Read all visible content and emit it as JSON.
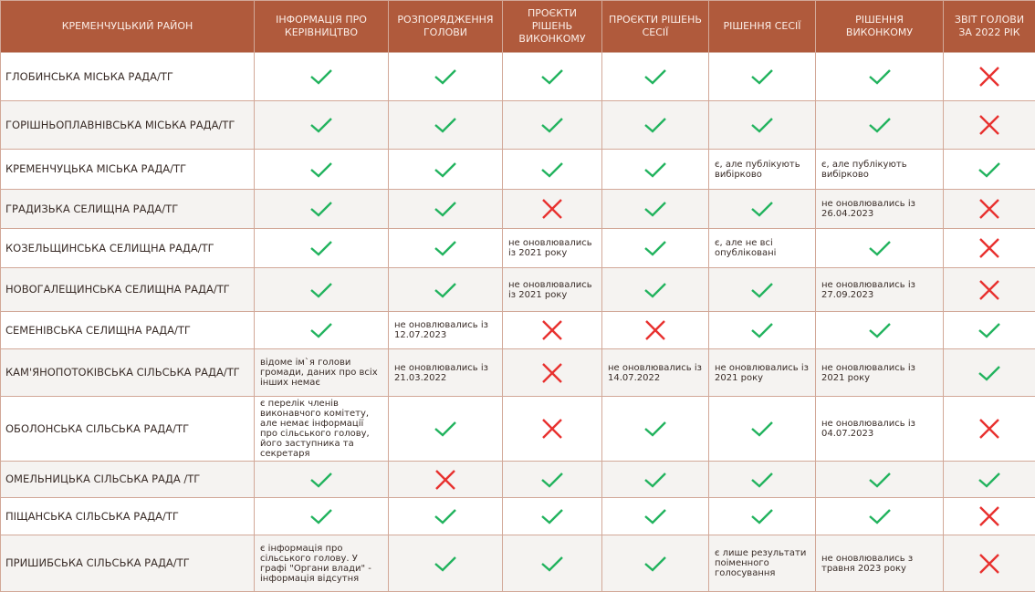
{
  "header": [
    "Кременчуцький район",
    "Інформація про керівництво",
    "Розпорядження голови",
    "Проєкти рішень виконкому",
    "Проєкти рішень сесії",
    "Рішення сесії",
    "Рішення виконкому",
    "Звіт голови за 2022 рік"
  ],
  "colors": {
    "header_bg": "#b05a3c",
    "check": "#22b35e",
    "cross": "#e8312f"
  },
  "rows": [
    {
      "name": "Глобинська міська рада/ТГ",
      "cells": [
        "y",
        "y",
        "y",
        "y",
        "y",
        "y",
        "n"
      ]
    },
    {
      "name": "Горішньоплавнівська міська рада/ТГ",
      "cells": [
        "y",
        "y",
        "y",
        "y",
        "y",
        "y",
        "n"
      ]
    },
    {
      "name": "Кременчуцька міська рада/ТГ",
      "cells": [
        "y",
        "y",
        "y",
        "y",
        "є, але публікують вибірково",
        "є, але публікують вибірково",
        "y"
      ]
    },
    {
      "name": "Градизька селищна рада/ТГ",
      "cells": [
        "y",
        "y",
        "n",
        "y",
        "y",
        "не оновлювались із 26.04.2023",
        "n"
      ]
    },
    {
      "name": "Козельщинська селищна рада/ТГ",
      "cells": [
        "y",
        "y",
        "не оновлювались із 2021 року",
        "y",
        "є, але не всі опубліковані",
        "y",
        "n"
      ]
    },
    {
      "name": "Новогалещинська селищна рада/ТГ",
      "cells": [
        "y",
        "y",
        "не оновлювались із 2021 року",
        "y",
        "y",
        "не оновлювались із 27.09.2023",
        "n"
      ]
    },
    {
      "name": "Семенівська селищна рада/ТГ",
      "cells": [
        "y",
        "не оновлювались із 12.07.2023",
        "n",
        "n",
        "y",
        "y",
        "y"
      ]
    },
    {
      "name": "Кам'янопотоківська сільська рада/ТГ",
      "cells": [
        "відоме ім`я голови громади, даних про всіх інших  немає",
        "не оновлювались із 21.03.2022",
        "n",
        "не оновлювались із 14.07.2022",
        "не оновлювались із 2021 року",
        "не оновлювались із 2021 року",
        "y"
      ]
    },
    {
      "name": "Оболонська сільська рада/ТГ",
      "cells": [
        "є перелік членів виконавчого комітету, але немає інформації про сільського голову, його заступника та секретаря",
        "y",
        "n",
        "y",
        "y",
        "не оновлювались із 04.07.2023",
        "n"
      ]
    },
    {
      "name": "Омельницька сільська рада /ТГ",
      "cells": [
        "y",
        "n",
        "y",
        "y",
        "y",
        "y",
        "y"
      ]
    },
    {
      "name": "Піщанська сільська рада/ТГ",
      "cells": [
        "y",
        "y",
        "y",
        "y",
        "y",
        "y",
        "n"
      ]
    },
    {
      "name": "Пришибська сільська рада/ТГ",
      "cells": [
        "є інформація про сільського голову. У графі \"Органи влади\" - інформація відсутня",
        "y",
        "y",
        "y",
        "є лише результати поіменного голосування",
        "не оновлювались з травня 2023 року",
        "n"
      ]
    }
  ]
}
